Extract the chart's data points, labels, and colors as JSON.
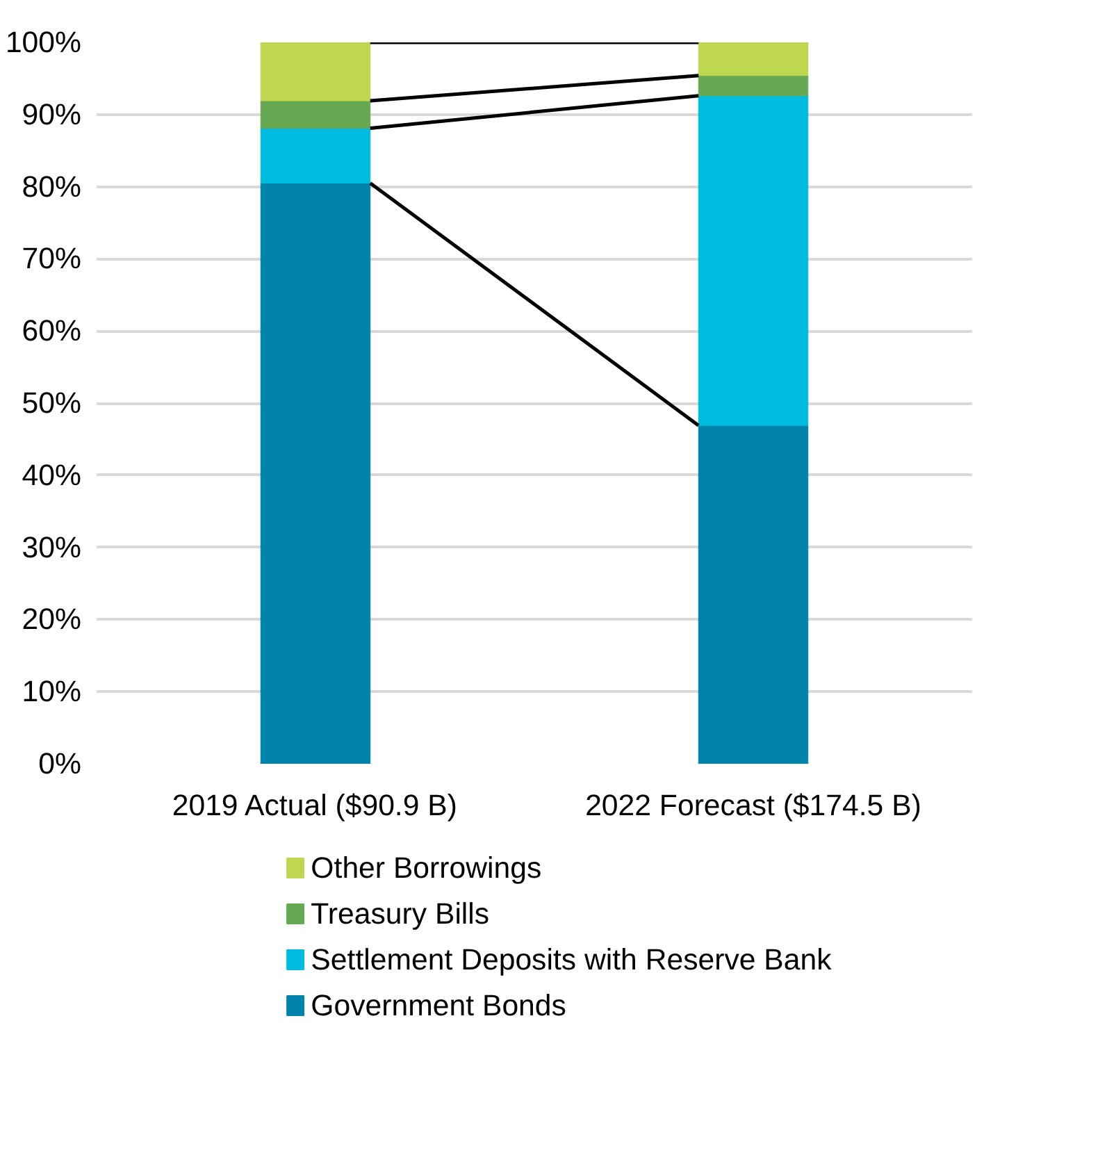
{
  "chart_data": {
    "type": "bar",
    "stacked": true,
    "categories": [
      "2019 Actual ($90.9 B)",
      "2022 Forecast ($174.5 B)"
    ],
    "series": [
      {
        "name": "Government Bonds",
        "color": "#0083ab",
        "values": [
          80.5,
          46.9
        ]
      },
      {
        "name": "Settlement Deposits with Reserve Bank",
        "color": "#00bbe0",
        "values": [
          7.6,
          45.7
        ]
      },
      {
        "name": "Treasury Bills",
        "color": "#67a853",
        "values": [
          3.8,
          2.8
        ]
      },
      {
        "name": "Other Borrowings",
        "color": "#bed650",
        "values": [
          8.1,
          4.6
        ]
      }
    ],
    "ylim": [
      0,
      100
    ],
    "yticks": [
      {
        "value": 0,
        "label": "0%"
      },
      {
        "value": 10,
        "label": "10%"
      },
      {
        "value": 20,
        "label": "20%"
      },
      {
        "value": 30,
        "label": "30%"
      },
      {
        "value": 40,
        "label": "40%"
      },
      {
        "value": 50,
        "label": "50%"
      },
      {
        "value": 60,
        "label": "60%"
      },
      {
        "value": 70,
        "label": "70%"
      },
      {
        "value": 80,
        "label": "80%"
      },
      {
        "value": 90,
        "label": "90%"
      },
      {
        "value": 100,
        "label": "100%"
      }
    ],
    "grid": "y",
    "legend": "bottom"
  }
}
